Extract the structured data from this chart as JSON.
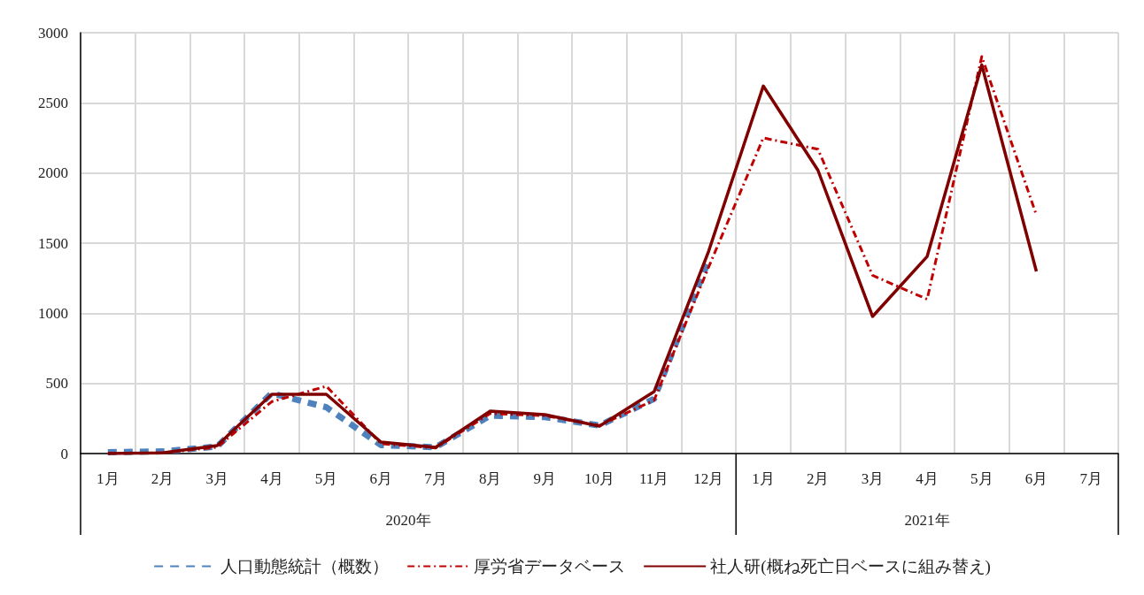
{
  "chart_data": {
    "type": "line",
    "categories": [
      "1月",
      "2月",
      "3月",
      "4月",
      "5月",
      "6月",
      "7月",
      "8月",
      "9月",
      "10月",
      "11月",
      "12月",
      "1月",
      "2月",
      "3月",
      "4月",
      "5月",
      "6月",
      "7月"
    ],
    "series": [
      {
        "name": "人口動態統計（概数）",
        "color": "#4f81bd",
        "line_style": "dashed",
        "values": [
          10,
          15,
          50,
          430,
          330,
          60,
          45,
          270,
          260,
          200,
          390,
          1380,
          null,
          null,
          null,
          null,
          null,
          null,
          null
        ]
      },
      {
        "name": "厚労省データベース",
        "color": "#c00000",
        "line_style": "dashdot",
        "values": [
          0,
          5,
          45,
          370,
          480,
          70,
          40,
          285,
          270,
          200,
          380,
          1330,
          2250,
          2170,
          1270,
          1100,
          2830,
          1700,
          null
        ]
      },
      {
        "name": "社人研(概ね死亡日ベースに組み替え)",
        "color": "#800000",
        "line_style": "solid",
        "values": [
          0,
          5,
          57,
          422,
          422,
          82,
          44,
          302,
          277,
          195,
          441,
          1443,
          2620,
          2020,
          977,
          1405,
          2770,
          1298,
          null
        ]
      }
    ],
    "ylim": [
      0,
      3000
    ],
    "yticks": [
      0,
      500,
      1000,
      1500,
      2000,
      2500,
      3000
    ],
    "annotations": [
      "2020年",
      "2021年"
    ],
    "grid": true,
    "legend": "bottom",
    "marker": "none"
  }
}
